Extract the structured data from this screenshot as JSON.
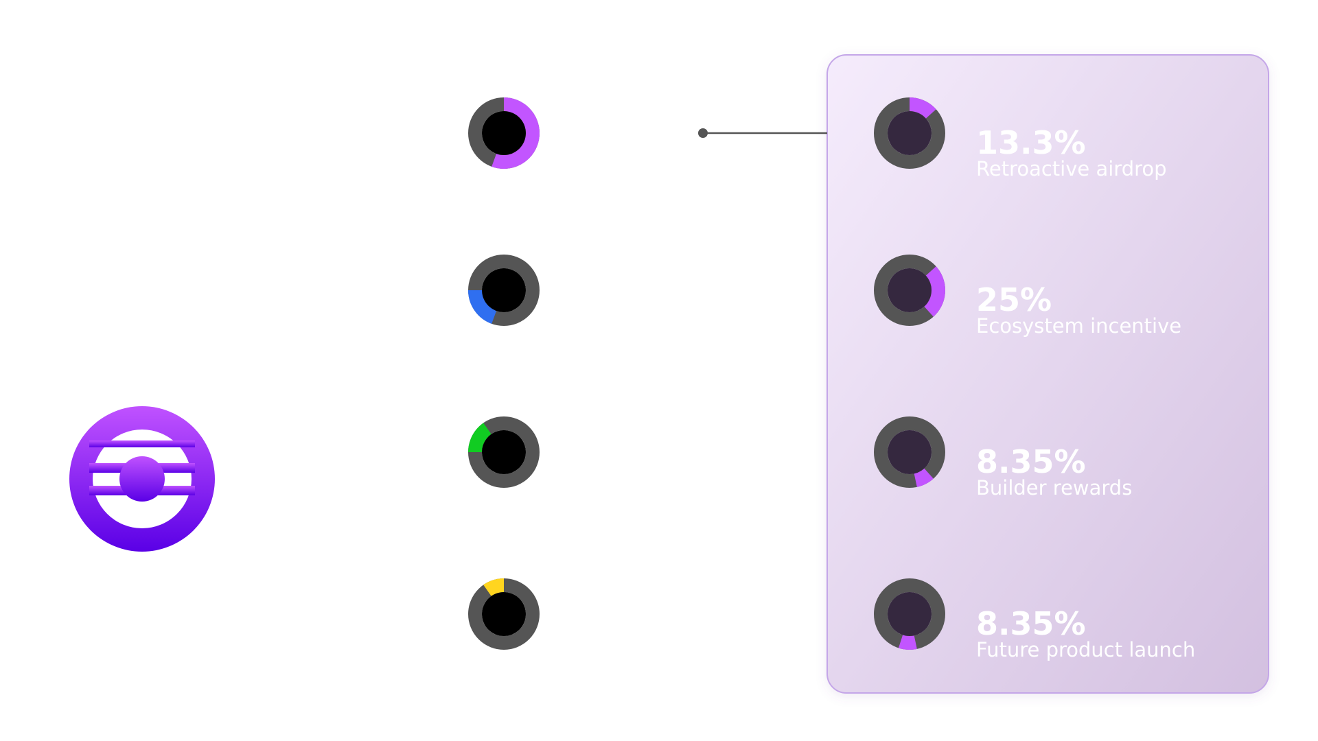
{
  "logo": {
    "name": "purple-token-logo",
    "gradient_top": "#c052ff",
    "gradient_bottom": "#5a00e6"
  },
  "colors": {
    "ring_track": "#555555",
    "left_center": "#000000",
    "card_center": "#35283f",
    "card_border": "#c4a6e8",
    "connector": "#555555"
  },
  "chart_data": {
    "type": "pie",
    "title": "",
    "legend_placement": "none",
    "left_dials": [
      {
        "color": "#c255ff",
        "start_deg": 0,
        "end_deg": 200
      },
      {
        "color": "#2f6ff0",
        "start_deg": 200,
        "end_deg": 270
      },
      {
        "color": "#11cc22",
        "start_deg": 270,
        "end_deg": 325
      },
      {
        "color": "#ffd51f",
        "start_deg": 325,
        "end_deg": 360
      }
    ],
    "card_items": [
      {
        "value": 13.3,
        "percent_label": "13.3%",
        "label": "Retroactive airdrop",
        "color": "#c255ff",
        "start_deg": 0,
        "end_deg": 48
      },
      {
        "value": 25,
        "percent_label": "25%",
        "label": "Ecosystem incentive",
        "color": "#c255ff",
        "start_deg": 48,
        "end_deg": 138
      },
      {
        "value": 8.35,
        "percent_label": "8.35%",
        "label": "Builder rewards",
        "color": "#c255ff",
        "start_deg": 138,
        "end_deg": 168
      },
      {
        "value": 8.35,
        "percent_label": "8.35%",
        "label": "Future product launch",
        "color": "#c255ff",
        "start_deg": 168,
        "end_deg": 198
      }
    ]
  }
}
